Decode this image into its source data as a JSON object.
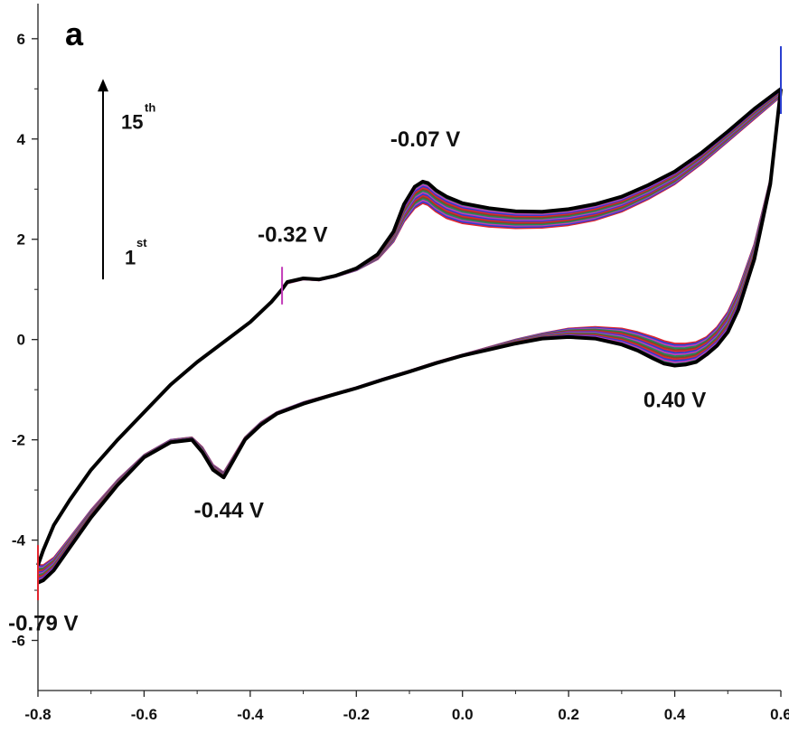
{
  "chart_data": {
    "type": "line",
    "panel_label": "a",
    "xlim": [
      -0.8,
      0.6
    ],
    "ylim": [
      -7,
      6.7
    ],
    "xticks": [
      -0.8,
      -0.6,
      -0.4,
      -0.2,
      0.0,
      0.2,
      0.4,
      0.6
    ],
    "xtick_labels": [
      "-0.8",
      "-0.6",
      "-0.4",
      "-0.2",
      "0.0",
      "0.2",
      "0.4",
      "0.6"
    ],
    "yticks": [
      -6,
      -4,
      -2,
      0,
      2,
      4,
      6
    ],
    "ytick_labels": [
      "-6",
      "-4",
      "-2",
      "0",
      "2",
      "4",
      "6"
    ],
    "series_colors": [
      "#e0262e",
      "#2a3fd0",
      "#c23bb8",
      "#1f8a5a",
      "#7a4a2a",
      "#000000"
    ],
    "anodic_scan": {
      "x": [
        -0.8,
        -0.79,
        -0.77,
        -0.74,
        -0.7,
        -0.65,
        -0.6,
        -0.55,
        -0.5,
        -0.45,
        -0.4,
        -0.36,
        -0.34,
        -0.33,
        -0.3,
        -0.27,
        -0.24,
        -0.2,
        -0.16,
        -0.13,
        -0.11,
        -0.09,
        -0.075,
        -0.065,
        -0.05,
        -0.03,
        0.0,
        0.05,
        0.1,
        0.15,
        0.2,
        0.25,
        0.3,
        0.35,
        0.4,
        0.45,
        0.5,
        0.55,
        0.6
      ],
      "y_first": [
        -4.5,
        -4.2,
        -3.7,
        -3.2,
        -2.6,
        -2.0,
        -1.45,
        -0.9,
        -0.45,
        -0.05,
        0.35,
        0.75,
        1.0,
        1.12,
        1.2,
        1.18,
        1.25,
        1.38,
        1.6,
        1.95,
        2.35,
        2.62,
        2.72,
        2.68,
        2.55,
        2.42,
        2.32,
        2.25,
        2.22,
        2.23,
        2.28,
        2.38,
        2.55,
        2.8,
        3.1,
        3.5,
        3.95,
        4.4,
        4.85
      ],
      "y_last": [
        -4.5,
        -4.2,
        -3.7,
        -3.2,
        -2.6,
        -2.0,
        -1.45,
        -0.9,
        -0.45,
        -0.05,
        0.35,
        0.75,
        1.0,
        1.15,
        1.22,
        1.2,
        1.27,
        1.42,
        1.7,
        2.15,
        2.7,
        3.05,
        3.15,
        3.12,
        2.98,
        2.85,
        2.72,
        2.62,
        2.56,
        2.55,
        2.6,
        2.7,
        2.85,
        3.08,
        3.35,
        3.72,
        4.15,
        4.6,
        5.0
      ]
    },
    "cathodic_scan": {
      "x": [
        0.6,
        0.58,
        0.55,
        0.52,
        0.5,
        0.48,
        0.46,
        0.44,
        0.42,
        0.4,
        0.38,
        0.36,
        0.33,
        0.3,
        0.25,
        0.2,
        0.15,
        0.1,
        0.05,
        0.0,
        -0.05,
        -0.1,
        -0.15,
        -0.2,
        -0.25,
        -0.3,
        -0.35,
        -0.38,
        -0.41,
        -0.43,
        -0.45,
        -0.47,
        -0.49,
        -0.51,
        -0.55,
        -0.6,
        -0.65,
        -0.7,
        -0.74,
        -0.77,
        -0.79,
        -0.8
      ],
      "y_first": [
        4.85,
        3.2,
        1.9,
        1.0,
        0.55,
        0.25,
        0.05,
        -0.05,
        -0.08,
        -0.08,
        -0.03,
        0.05,
        0.15,
        0.22,
        0.25,
        0.22,
        0.12,
        0.0,
        -0.15,
        -0.3,
        -0.45,
        -0.62,
        -0.78,
        -0.95,
        -1.1,
        -1.25,
        -1.45,
        -1.65,
        -1.95,
        -2.3,
        -2.65,
        -2.5,
        -2.15,
        -1.95,
        -2.0,
        -2.3,
        -2.8,
        -3.4,
        -3.95,
        -4.35,
        -4.5,
        -4.5
      ],
      "y_last": [
        5.0,
        3.1,
        1.6,
        0.6,
        0.15,
        -0.12,
        -0.3,
        -0.45,
        -0.5,
        -0.52,
        -0.48,
        -0.38,
        -0.22,
        -0.1,
        0.02,
        0.05,
        0.02,
        -0.08,
        -0.2,
        -0.32,
        -0.47,
        -0.64,
        -0.8,
        -0.97,
        -1.12,
        -1.28,
        -1.48,
        -1.7,
        -2.0,
        -2.38,
        -2.75,
        -2.6,
        -2.25,
        -2.0,
        -2.05,
        -2.35,
        -2.9,
        -3.55,
        -4.15,
        -4.6,
        -4.8,
        -4.85
      ]
    },
    "annotations": [
      {
        "text": "-0.07 V",
        "x": -0.07,
        "y": 3.85
      },
      {
        "text": "-0.32 V",
        "x": -0.32,
        "y": 1.95
      },
      {
        "text": "0.40 V",
        "x": 0.4,
        "y": -1.35
      },
      {
        "text": "-0.44 V",
        "x": -0.44,
        "y": -3.55
      },
      {
        "text": "-0.79 V",
        "x": -0.79,
        "y": -5.8
      }
    ],
    "cycle_arrow": {
      "from_label": "1",
      "from_sup": "st",
      "to_label": "15",
      "to_sup": "th"
    }
  }
}
